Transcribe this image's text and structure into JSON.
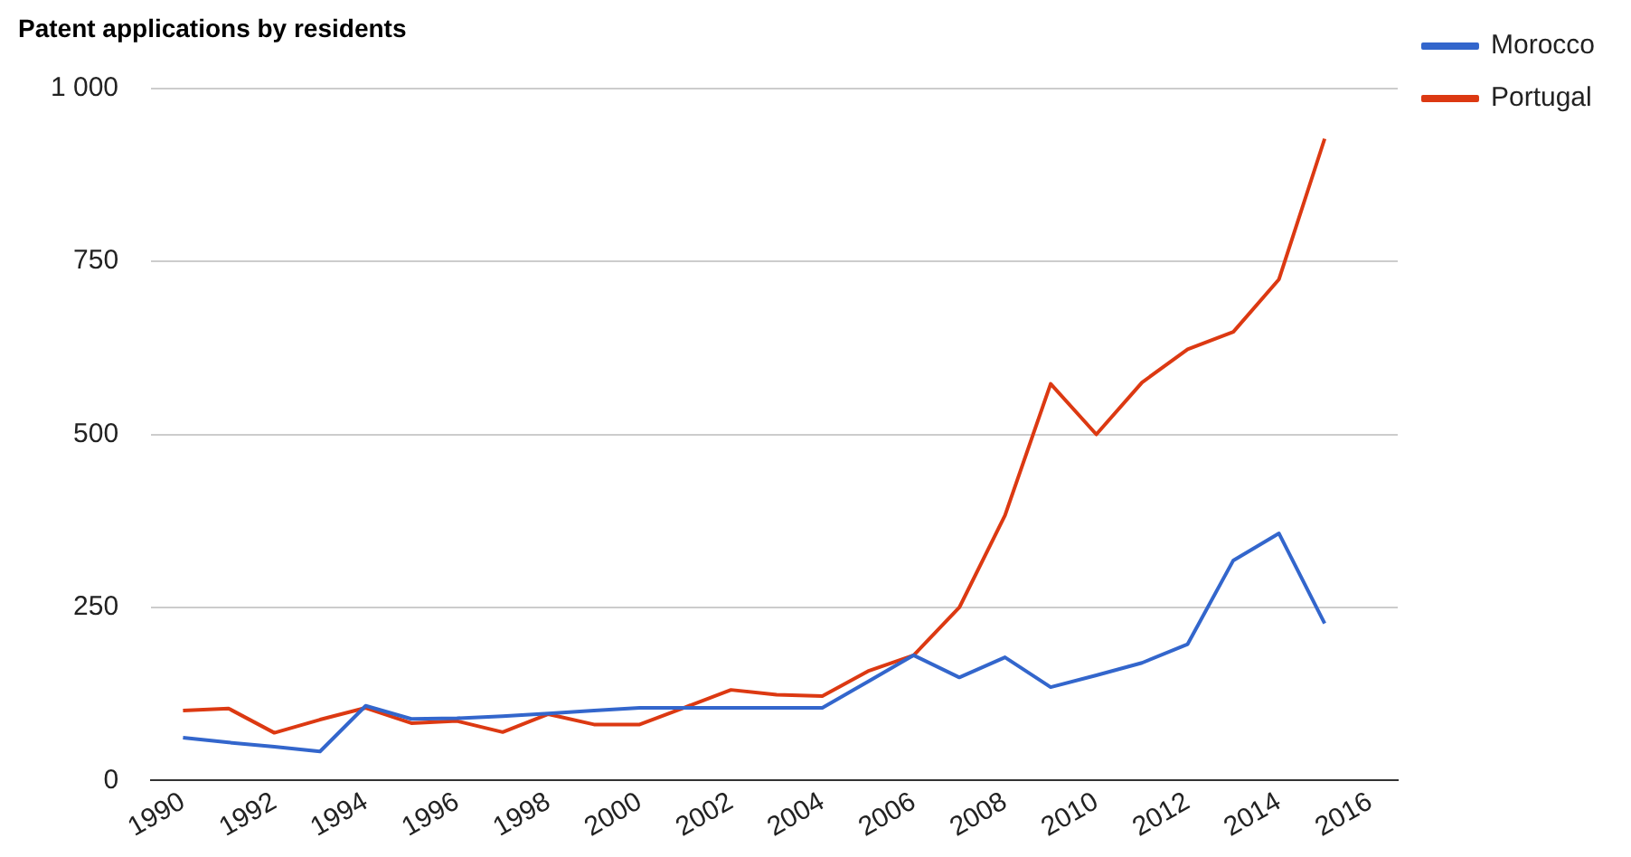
{
  "chart_data": {
    "type": "line",
    "title": "Patent applications by residents",
    "x": [
      1990,
      1991,
      1992,
      1993,
      1994,
      1995,
      1996,
      1997,
      1998,
      1999,
      2000,
      2001,
      2002,
      2003,
      2004,
      2005,
      2006,
      2007,
      2008,
      2009,
      2010,
      2011,
      2012,
      2013,
      2014,
      2015
    ],
    "series": [
      {
        "name": "Morocco",
        "color": "#3366cc",
        "values": [
          62,
          55,
          49,
          42,
          108,
          89,
          90,
          93,
          97,
          101,
          105,
          105,
          105,
          105,
          105,
          143,
          181,
          149,
          178,
          135,
          152,
          170,
          197,
          318,
          357,
          227
        ]
      },
      {
        "name": "Portugal",
        "color": "#dc3912",
        "values": [
          101,
          104,
          69,
          88,
          105,
          83,
          86,
          70,
          96,
          81,
          81,
          106,
          131,
          124,
          122,
          158,
          181,
          250,
          383,
          573,
          500,
          575,
          623,
          648,
          724,
          927
        ]
      }
    ],
    "xlim": [
      1989.3,
      2016.6
    ],
    "xticks": [
      1990,
      1992,
      1994,
      1996,
      1998,
      2000,
      2002,
      2004,
      2006,
      2008,
      2010,
      2012,
      2014,
      2016
    ],
    "ylim": [
      0,
      1000
    ],
    "yticks": [
      0,
      250,
      500,
      750,
      {
        "value": 1000,
        "label": "1 000"
      }
    ],
    "grid": "y",
    "legend": "top right",
    "marker": "none",
    "line_style": "solid"
  }
}
